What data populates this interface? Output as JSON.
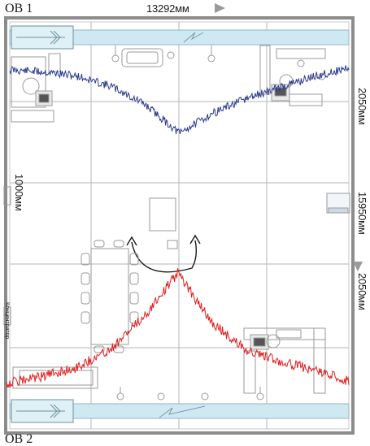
{
  "labels": {
    "ov_top": "OB 1",
    "ov_bottom": "OB 2",
    "dim_top": "13292мм",
    "dim_right_top": "2050мм",
    "dim_right_mid": "15950мм",
    "dim_right_bottom": "2050мм",
    "dim_left": "1000мм",
    "concentrator": "Концентратор"
  },
  "colors": {
    "wall": "#8c8c8c",
    "grid": "#b5b5b5",
    "duct": "#cfe9f3",
    "blue_trace": "#2b3a8f",
    "red_trace": "#e02020",
    "arrow": "#9a9a9a"
  },
  "chart_data": {
    "type": "line",
    "series": [
      {
        "color": "#2b3a8f",
        "x": [
          0,
          10,
          20,
          30,
          40,
          50,
          60,
          70,
          80,
          90,
          100
        ],
        "y": [
          0.0,
          0.03,
          0.1,
          0.26,
          0.55,
          1.0,
          0.68,
          0.45,
          0.27,
          0.1,
          -0.03
        ]
      },
      {
        "color": "#e02020",
        "x": [
          0,
          10,
          20,
          30,
          40,
          50,
          60,
          70,
          80,
          90,
          100
        ],
        "y": [
          0.0,
          0.06,
          0.14,
          0.3,
          0.6,
          1.0,
          0.55,
          0.3,
          0.2,
          0.12,
          0.02
        ]
      }
    ]
  }
}
